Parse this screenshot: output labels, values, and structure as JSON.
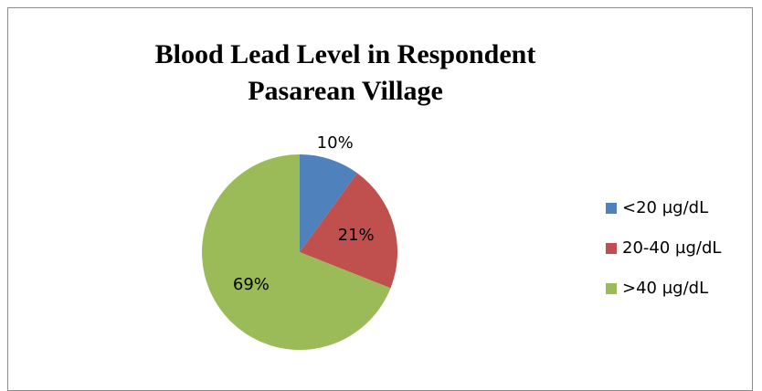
{
  "chart_data": {
    "type": "pie",
    "title": "Blood Lead Level in Respondent Pasarean Village",
    "categories": [
      "<20 µg/dL",
      "20-40  µg/dL",
      ">40 µg/dL"
    ],
    "values": [
      10,
      21,
      69
    ],
    "value_labels": [
      "10%",
      "21%",
      "69%"
    ],
    "colors": [
      "#4f81bd",
      "#c0504d",
      "#9bbb59"
    ],
    "legend": "right"
  }
}
